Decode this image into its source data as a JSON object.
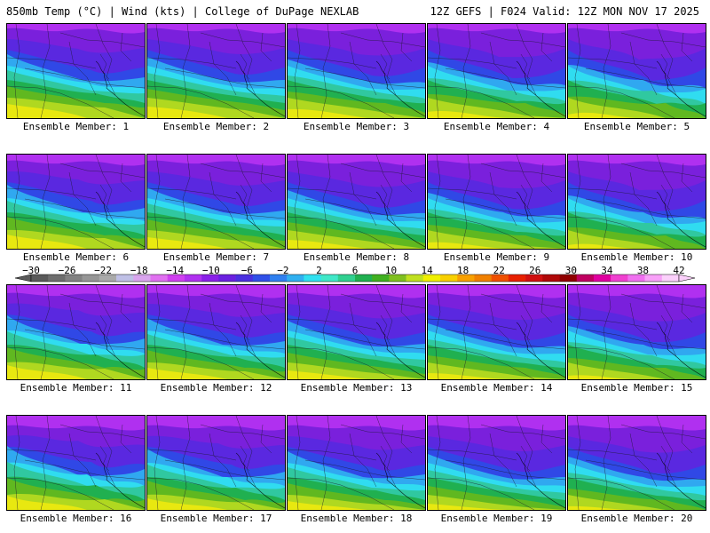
{
  "header": {
    "left": "850mb Temp (°C) | Wind (kts) | College of DuPage NEXLAB",
    "right": "12Z GEFS | F024 Valid: 12Z MON NOV 17 2025"
  },
  "members": [
    {
      "label": "Ensemble Member: 1"
    },
    {
      "label": "Ensemble Member: 2"
    },
    {
      "label": "Ensemble Member: 3"
    },
    {
      "label": "Ensemble Member: 4"
    },
    {
      "label": "Ensemble Member: 5"
    },
    {
      "label": "Ensemble Member: 6"
    },
    {
      "label": "Ensemble Member: 7"
    },
    {
      "label": "Ensemble Member: 8"
    },
    {
      "label": "Ensemble Member: 9"
    },
    {
      "label": "Ensemble Member: 10"
    },
    {
      "label": "Ensemble Member: 11"
    },
    {
      "label": "Ensemble Member: 12"
    },
    {
      "label": "Ensemble Member: 13"
    },
    {
      "label": "Ensemble Member: 14"
    },
    {
      "label": "Ensemble Member: 15"
    },
    {
      "label": "Ensemble Member: 16"
    },
    {
      "label": "Ensemble Member: 17"
    },
    {
      "label": "Ensemble Member: 18"
    },
    {
      "label": "Ensemble Member: 19"
    },
    {
      "label": "Ensemble Member: 20"
    }
  ],
  "colorbar": {
    "labels": [
      "−30",
      "−26",
      "−22",
      "−18",
      "−14",
      "−10",
      "−6",
      "−2",
      "2",
      "6",
      "10",
      "14",
      "18",
      "22",
      "26",
      "30",
      "34",
      "38",
      "42"
    ],
    "colors": [
      "#5a5a5a",
      "#6e6e6e",
      "#828282",
      "#969696",
      "#aaaaaa",
      "#bfc0e6",
      "#d9a5ee",
      "#e070f0",
      "#d040f0",
      "#b030f0",
      "#8a20e8",
      "#6a20e0",
      "#4a30e0",
      "#3050e8",
      "#3080f0",
      "#30b0f0",
      "#30e0f0",
      "#40e8c8",
      "#30d090",
      "#20b050",
      "#40b020",
      "#80c020",
      "#c0e020",
      "#f0f000",
      "#f8d000",
      "#f8a000",
      "#f08000",
      "#f05000",
      "#e82000",
      "#d01010",
      "#b00808",
      "#900000",
      "#c00060",
      "#e000a0",
      "#f040d0",
      "#f070f0",
      "#f8a0f8",
      "#fbd0fb"
    ]
  }
}
